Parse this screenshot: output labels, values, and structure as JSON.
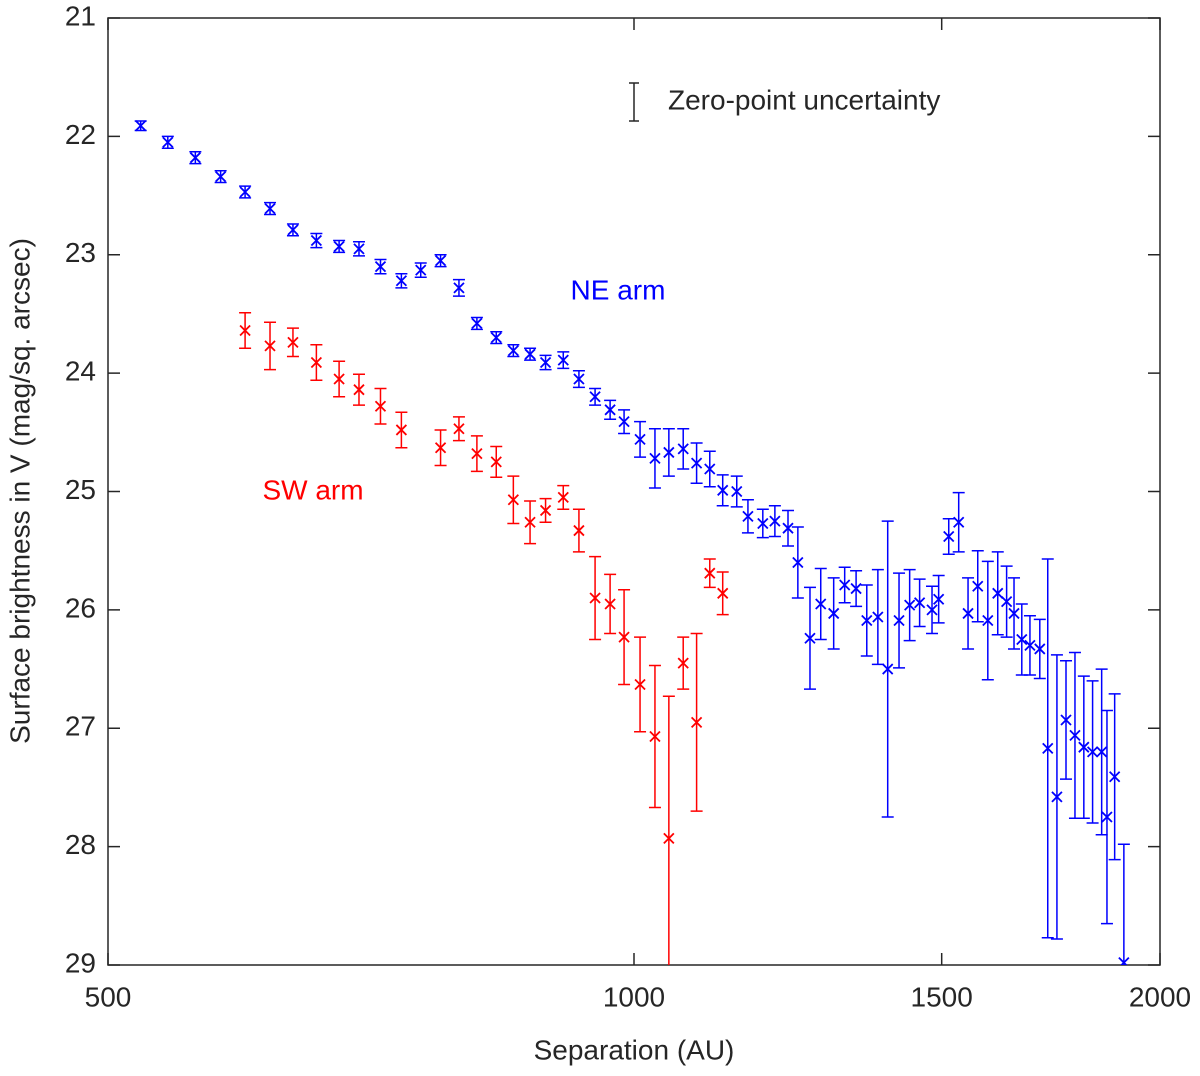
{
  "chart_data": {
    "type": "scatter",
    "xlabel": "Separation (AU)",
    "ylabel": "Surface brightness in V (mag/sq. arcsec)",
    "xscale": "log",
    "xlim": [
      500,
      2000
    ],
    "xticks": [
      500,
      1000,
      1500,
      2000
    ],
    "ylim": [
      21,
      29
    ],
    "y_inverted": true,
    "yticks": [
      21,
      22,
      23,
      24,
      25,
      26,
      27,
      28,
      29
    ],
    "grid": false,
    "annotation": {
      "text": "Zero-point uncertainty",
      "error": 0.16
    },
    "series": [
      {
        "name": "NE arm",
        "color": "#0000ff",
        "x": [
          522,
          541,
          561,
          580,
          599,
          619,
          638,
          658,
          678,
          696,
          716,
          736,
          755,
          775,
          794,
          813,
          834,
          853,
          872,
          890,
          911,
          930,
          950,
          969,
          987,
          1008,
          1028,
          1047,
          1067,
          1086,
          1105,
          1124,
          1145,
          1162,
          1185,
          1204,
          1225,
          1241,
          1261,
          1279,
          1301,
          1320,
          1340,
          1359,
          1379,
          1397,
          1418,
          1438,
          1457,
          1481,
          1494,
          1514,
          1534,
          1553,
          1573,
          1594,
          1615,
          1634,
          1650,
          1667,
          1685,
          1707,
          1725,
          1746,
          1767,
          1788,
          1809,
          1830,
          1852,
          1865,
          1884,
          1907
        ],
        "values": [
          21.91,
          22.05,
          22.18,
          22.34,
          22.47,
          22.61,
          22.79,
          22.88,
          22.93,
          22.95,
          23.1,
          23.22,
          23.13,
          23.05,
          23.28,
          23.58,
          23.7,
          23.81,
          23.84,
          23.91,
          23.89,
          24.05,
          24.2,
          24.31,
          24.41,
          24.56,
          24.72,
          24.67,
          24.64,
          24.76,
          24.81,
          24.99,
          25.0,
          25.21,
          25.27,
          25.25,
          25.31,
          25.6,
          26.24,
          25.95,
          26.03,
          25.79,
          25.82,
          26.09,
          26.06,
          26.5,
          26.09,
          25.96,
          25.94,
          26.0,
          25.91,
          25.38,
          25.26,
          26.03,
          25.8,
          26.09,
          25.86,
          25.93,
          26.03,
          26.25,
          26.3,
          26.33,
          27.17,
          27.58,
          26.93,
          27.06,
          27.16,
          27.2,
          27.2,
          27.75,
          27.41,
          28.98
        ],
        "errors": [
          0.04,
          0.05,
          0.05,
          0.05,
          0.05,
          0.05,
          0.05,
          0.06,
          0.05,
          0.06,
          0.06,
          0.06,
          0.06,
          0.05,
          0.07,
          0.05,
          0.05,
          0.05,
          0.05,
          0.06,
          0.07,
          0.07,
          0.07,
          0.08,
          0.1,
          0.15,
          0.25,
          0.2,
          0.17,
          0.17,
          0.15,
          0.13,
          0.13,
          0.14,
          0.12,
          0.13,
          0.15,
          0.3,
          0.43,
          0.3,
          0.3,
          0.15,
          0.15,
          0.3,
          0.4,
          1.25,
          0.4,
          0.3,
          0.2,
          0.2,
          0.2,
          0.15,
          0.25,
          0.3,
          0.3,
          0.5,
          0.35,
          0.3,
          0.3,
          0.3,
          0.25,
          0.25,
          1.6,
          1.2,
          0.5,
          0.7,
          0.6,
          0.6,
          0.7,
          0.9,
          0.7,
          1.0
        ]
      },
      {
        "name": "SW arm",
        "color": "#ff0000",
        "x": [
          599,
          619,
          638,
          658,
          678,
          696,
          716,
          736,
          775,
          794,
          813,
          834,
          853,
          872,
          890,
          911,
          930,
          950,
          969,
          987,
          1008,
          1028,
          1047,
          1067,
          1086,
          1105,
          1124
        ],
        "values": [
          23.64,
          23.77,
          23.74,
          23.91,
          24.05,
          24.14,
          24.28,
          24.48,
          24.63,
          24.47,
          24.68,
          24.75,
          25.07,
          25.26,
          25.16,
          25.05,
          25.33,
          25.9,
          25.95,
          26.23,
          26.63,
          27.07,
          27.93,
          26.45,
          26.95,
          25.69,
          25.86
        ],
        "errors": [
          0.15,
          0.2,
          0.12,
          0.15,
          0.15,
          0.13,
          0.15,
          0.15,
          0.15,
          0.1,
          0.15,
          0.13,
          0.2,
          0.18,
          0.1,
          0.1,
          0.18,
          0.35,
          0.25,
          0.4,
          0.4,
          0.6,
          1.2,
          0.22,
          0.75,
          0.12,
          0.18
        ]
      }
    ]
  }
}
